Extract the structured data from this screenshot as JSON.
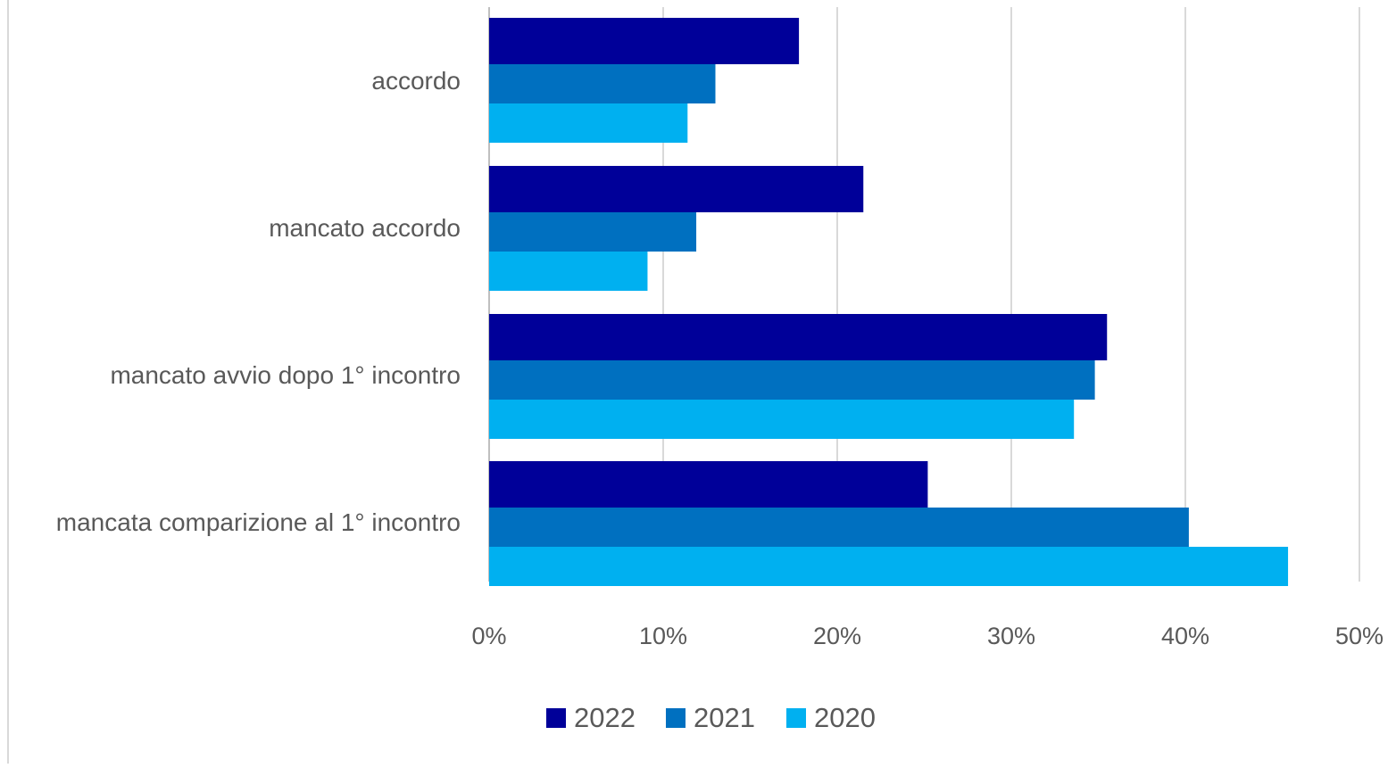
{
  "chart_data": {
    "type": "bar",
    "orientation": "horizontal",
    "categories": [
      "accordo",
      "mancato accordo",
      "mancato avvio dopo 1° incontro",
      "mancata comparizione al 1° incontro"
    ],
    "series": [
      {
        "name": "2022",
        "color": "#000099",
        "values": [
          17.8,
          21.5,
          35.5,
          25.2
        ]
      },
      {
        "name": "2021",
        "color": "#0070C0",
        "values": [
          13.0,
          11.9,
          34.8,
          40.2
        ]
      },
      {
        "name": "2020",
        "color": "#00B0F0",
        "values": [
          11.4,
          9.1,
          33.6,
          45.9
        ]
      }
    ],
    "x_ticks": [
      "0%",
      "10%",
      "20%",
      "30%",
      "40%",
      "50%"
    ],
    "xlim": [
      0,
      50
    ],
    "grid": true,
    "legend_position": "bottom",
    "title": "",
    "xlabel": "",
    "ylabel": ""
  }
}
